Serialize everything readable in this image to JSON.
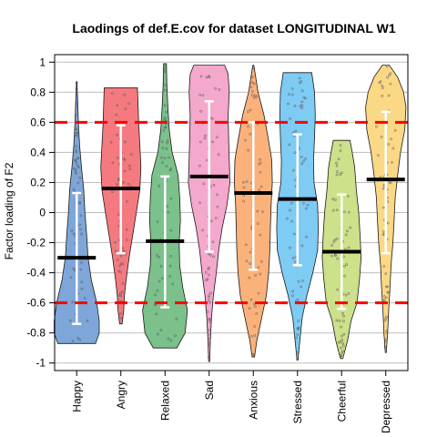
{
  "chart_data": {
    "type": "violin",
    "title": "Laodings of def.E.cov for dataset LONGITUDINAL W1",
    "xlabel": "",
    "ylabel": "Factor loading of F2",
    "ylim": [
      -1.05,
      1.05
    ],
    "yticks": [
      "-1",
      "-0.8",
      "-0.6",
      "-0.4",
      "-0.2",
      "0",
      "0.2",
      "0.4",
      "0.6",
      "0.8",
      "1"
    ],
    "grid": "horizontal",
    "reference_lines": [
      0.6,
      -0.6
    ],
    "reference_line_color": "#ff0000",
    "categories": [
      "Happy",
      "Angry",
      "Relaxed",
      "Sad",
      "Anxious",
      "Stressed",
      "Cheerful",
      "Depressed"
    ],
    "colors": [
      "#7ea6d8",
      "#f47a80",
      "#7cc08c",
      "#f4a8cc",
      "#fbb27a",
      "#7ecbf4",
      "#cde08a",
      "#fbd885"
    ],
    "series": [
      {
        "min": -0.87,
        "max": 0.87,
        "mean": -0.3,
        "sd_low": -0.74,
        "sd_high": 0.13,
        "profile": [
          [
            -0.87,
            0.8
          ],
          [
            -0.8,
            0.95
          ],
          [
            -0.72,
            0.95
          ],
          [
            -0.6,
            0.85
          ],
          [
            -0.45,
            0.62
          ],
          [
            -0.3,
            0.48
          ],
          [
            -0.15,
            0.42
          ],
          [
            0.0,
            0.35
          ],
          [
            0.15,
            0.3
          ],
          [
            0.3,
            0.2
          ],
          [
            0.45,
            0.12
          ],
          [
            0.6,
            0.07
          ],
          [
            0.75,
            0.04
          ],
          [
            0.87,
            0.01
          ]
        ]
      },
      {
        "min": -0.74,
        "max": 0.83,
        "mean": 0.16,
        "sd_low": -0.27,
        "sd_high": 0.58,
        "profile": [
          [
            -0.74,
            0.05
          ],
          [
            -0.65,
            0.12
          ],
          [
            -0.55,
            0.15
          ],
          [
            -0.45,
            0.22
          ],
          [
            -0.3,
            0.35
          ],
          [
            -0.15,
            0.5
          ],
          [
            0.0,
            0.65
          ],
          [
            0.15,
            0.8
          ],
          [
            0.3,
            0.85
          ],
          [
            0.45,
            0.8
          ],
          [
            0.6,
            0.75
          ],
          [
            0.75,
            0.72
          ],
          [
            0.83,
            0.7
          ]
        ]
      },
      {
        "min": -0.9,
        "max": 0.99,
        "mean": -0.19,
        "sd_low": -0.63,
        "sd_high": 0.24,
        "profile": [
          [
            -0.9,
            0.5
          ],
          [
            -0.8,
            0.85
          ],
          [
            -0.65,
            0.95
          ],
          [
            -0.5,
            0.75
          ],
          [
            -0.35,
            0.62
          ],
          [
            -0.2,
            0.6
          ],
          [
            -0.05,
            0.65
          ],
          [
            0.1,
            0.62
          ],
          [
            0.25,
            0.55
          ],
          [
            0.4,
            0.3
          ],
          [
            0.55,
            0.18
          ],
          [
            0.7,
            0.12
          ],
          [
            0.85,
            0.08
          ],
          [
            0.99,
            0.06
          ]
        ]
      },
      {
        "min": -0.99,
        "max": 0.98,
        "mean": 0.24,
        "sd_low": -0.26,
        "sd_high": 0.74,
        "profile": [
          [
            -0.99,
            0.02
          ],
          [
            -0.85,
            0.05
          ],
          [
            -0.7,
            0.1
          ],
          [
            -0.55,
            0.18
          ],
          [
            -0.4,
            0.3
          ],
          [
            -0.25,
            0.4
          ],
          [
            -0.1,
            0.55
          ],
          [
            0.05,
            0.75
          ],
          [
            0.2,
            0.88
          ],
          [
            0.35,
            0.85
          ],
          [
            0.5,
            0.82
          ],
          [
            0.65,
            0.8
          ],
          [
            0.8,
            0.85
          ],
          [
            0.92,
            0.8
          ],
          [
            0.98,
            0.65
          ]
        ]
      },
      {
        "min": -0.96,
        "max": 0.98,
        "mean": 0.13,
        "sd_low": -0.38,
        "sd_high": 0.6,
        "profile": [
          [
            -0.96,
            0.05
          ],
          [
            -0.85,
            0.15
          ],
          [
            -0.7,
            0.35
          ],
          [
            -0.55,
            0.55
          ],
          [
            -0.4,
            0.65
          ],
          [
            -0.25,
            0.7
          ],
          [
            -0.1,
            0.72
          ],
          [
            0.05,
            0.75
          ],
          [
            0.2,
            0.8
          ],
          [
            0.35,
            0.78
          ],
          [
            0.5,
            0.62
          ],
          [
            0.65,
            0.45
          ],
          [
            0.8,
            0.2
          ],
          [
            0.9,
            0.1
          ],
          [
            0.98,
            0.02
          ]
        ]
      },
      {
        "min": -0.98,
        "max": 0.93,
        "mean": 0.09,
        "sd_low": -0.35,
        "sd_high": 0.52,
        "profile": [
          [
            -0.98,
            0.02
          ],
          [
            -0.85,
            0.1
          ],
          [
            -0.7,
            0.2
          ],
          [
            -0.55,
            0.4
          ],
          [
            -0.4,
            0.65
          ],
          [
            -0.25,
            0.85
          ],
          [
            -0.1,
            0.88
          ],
          [
            0.05,
            0.85
          ],
          [
            0.2,
            0.7
          ],
          [
            0.35,
            0.68
          ],
          [
            0.5,
            0.72
          ],
          [
            0.65,
            0.75
          ],
          [
            0.8,
            0.72
          ],
          [
            0.93,
            0.6
          ]
        ]
      },
      {
        "min": -0.97,
        "max": 0.48,
        "mean": -0.26,
        "sd_low": -0.64,
        "sd_high": 0.12,
        "profile": [
          [
            -0.97,
            0.05
          ],
          [
            -0.85,
            0.25
          ],
          [
            -0.72,
            0.4
          ],
          [
            -0.6,
            0.65
          ],
          [
            -0.45,
            0.75
          ],
          [
            -0.3,
            0.82
          ],
          [
            -0.15,
            0.78
          ],
          [
            0.0,
            0.72
          ],
          [
            0.15,
            0.62
          ],
          [
            0.3,
            0.55
          ],
          [
            0.4,
            0.45
          ],
          [
            0.48,
            0.35
          ]
        ]
      },
      {
        "min": -0.93,
        "max": 0.98,
        "mean": 0.22,
        "sd_low": -0.27,
        "sd_high": 0.67,
        "profile": [
          [
            -0.93,
            0.02
          ],
          [
            -0.8,
            0.08
          ],
          [
            -0.65,
            0.12
          ],
          [
            -0.5,
            0.18
          ],
          [
            -0.35,
            0.22
          ],
          [
            -0.2,
            0.3
          ],
          [
            -0.05,
            0.35
          ],
          [
            0.1,
            0.4
          ],
          [
            0.25,
            0.5
          ],
          [
            0.4,
            0.62
          ],
          [
            0.55,
            0.8
          ],
          [
            0.7,
            0.85
          ],
          [
            0.8,
            0.75
          ],
          [
            0.9,
            0.5
          ],
          [
            0.98,
            0.15
          ]
        ]
      }
    ]
  }
}
